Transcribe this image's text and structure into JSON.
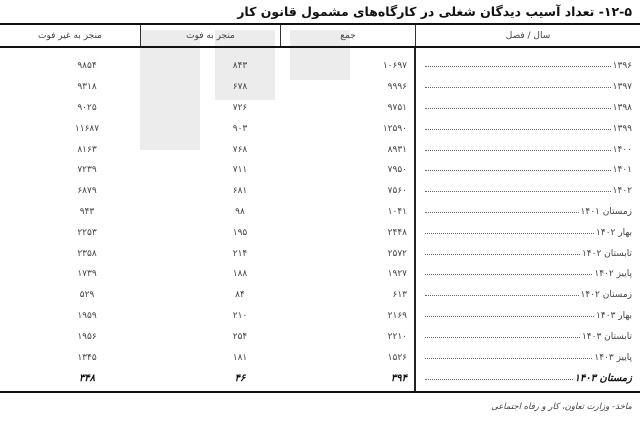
{
  "title": "۱۲-۵- تعداد آسیب دیدگان شغلی در کارگاه‌های مشمول قانون کار",
  "columns": {
    "period": "سال / فصل",
    "total": "جمع",
    "fatal": "منجر به فوت",
    "non_fatal": "منجر به غیر فوت"
  },
  "rows": [
    {
      "period": "۱۳۹۶",
      "total": "۱۰۶۹۷",
      "fatal": "۸۴۳",
      "non_fatal": "۹۸۵۴"
    },
    {
      "period": "۱۳۹۷",
      "total": "۹۹۹۶",
      "fatal": "۶۷۸",
      "non_fatal": "۹۳۱۸"
    },
    {
      "period": "۱۳۹۸",
      "total": "۹۷۵۱",
      "fatal": "۷۲۶",
      "non_fatal": "۹۰۲۵"
    },
    {
      "period": "۱۳۹۹",
      "total": "۱۲۵۹۰",
      "fatal": "۹۰۳",
      "non_fatal": "۱۱۶۸۷"
    },
    {
      "period": "۱۴۰۰",
      "total": "۸۹۳۱",
      "fatal": "۷۶۸",
      "non_fatal": "۸۱۶۳"
    },
    {
      "period": "۱۴۰۱",
      "total": "۷۹۵۰",
      "fatal": "۷۱۱",
      "non_fatal": "۷۲۳۹"
    },
    {
      "period": "۱۴۰۲",
      "total": "۷۵۶۰",
      "fatal": "۶۸۱",
      "non_fatal": "۶۸۷۹"
    },
    {
      "period": "زمستان ۱۴۰۱",
      "total": "۱۰۴۱",
      "fatal": "۹۸",
      "non_fatal": "۹۴۳"
    },
    {
      "period": "بهار ۱۴۰۲",
      "total": "۲۴۴۸",
      "fatal": "۱۹۵",
      "non_fatal": "۲۲۵۳"
    },
    {
      "period": "تابستان ۱۴۰۲",
      "total": "۲۵۷۲",
      "fatal": "۲۱۴",
      "non_fatal": "۲۳۵۸"
    },
    {
      "period": "پاییز ۱۴۰۲",
      "total": "۱۹۲۷",
      "fatal": "۱۸۸",
      "non_fatal": "۱۷۳۹"
    },
    {
      "period": "زمستان ۱۴۰۲",
      "total": "۶۱۳",
      "fatal": "۸۴",
      "non_fatal": "۵۲۹"
    },
    {
      "period": "بهار ۱۴۰۳",
      "total": "۲۱۶۹",
      "fatal": "۲۱۰",
      "non_fatal": "۱۹۵۹"
    },
    {
      "period": "تابستان ۱۴۰۳",
      "total": "۲۲۱۰",
      "fatal": "۲۵۴",
      "non_fatal": "۱۹۵۶"
    },
    {
      "period": "پاییز ۱۴۰۳",
      "total": "۱۵۲۶",
      "fatal": "۱۸۱",
      "non_fatal": "۱۳۴۵"
    },
    {
      "period": "زمستان ۱۴۰۳",
      "total": "۳۹۴",
      "fatal": "۴۶",
      "non_fatal": "۳۴۸",
      "bold": true
    }
  ],
  "source": "ماخذ- وزارت تعاون، کار و رفاه اجتماعی"
}
